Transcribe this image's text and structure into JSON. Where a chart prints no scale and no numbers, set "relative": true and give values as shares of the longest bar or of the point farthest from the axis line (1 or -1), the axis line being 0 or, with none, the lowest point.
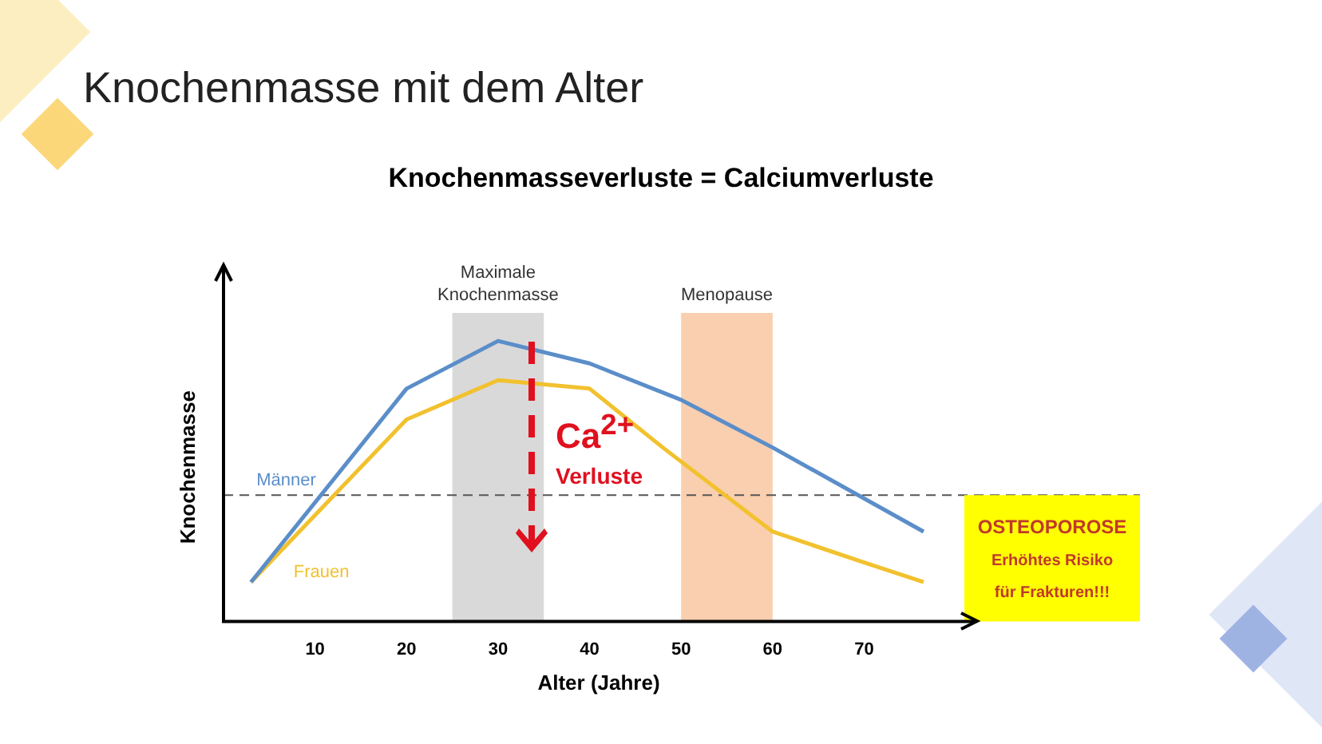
{
  "chart_data": {
    "type": "line",
    "title": "Knochenmasse mit dem Alter",
    "subtitle": "Knochenmasseverluste = Calciumverluste",
    "xlabel": "Alter (Jahre)",
    "ylabel": "Knochenmasse",
    "relative": true,
    "xlim": [
      0,
      82
    ],
    "xticks": [
      10,
      20,
      30,
      40,
      50,
      60,
      70
    ],
    "legend": false,
    "grid": false,
    "marker": "none",
    "line_style": "solid",
    "series": [
      {
        "name": "Männer",
        "color": "#5b8ec9",
        "x": [
          3,
          20,
          30,
          40,
          50,
          60,
          76.5
        ],
        "values": [
          0.14,
          0.83,
          1,
          0.92,
          0.79,
          0.62,
          0.32
        ]
      },
      {
        "name": "Frauen",
        "color": "#f2c12e",
        "x": [
          3,
          20,
          30,
          40,
          48,
          60,
          70,
          76.5
        ],
        "values": [
          0.14,
          0.72,
          0.86,
          0.83,
          0.62,
          0.32,
          0.21,
          0.14
        ]
      }
    ],
    "bands": [
      {
        "axis": "x",
        "from": 25,
        "to": 35,
        "label": "Maximale Knochenmasse",
        "color": "#d9d9d9"
      },
      {
        "axis": "x",
        "from": 50,
        "to": 60,
        "label": "Menopause",
        "color": "#f9cfb0"
      }
    ],
    "ref_lines": [
      {
        "axis": "y",
        "value": 0.45,
        "label": "OSTEOPOROSE\nErhöhtes Risiko\nfür Frakturen!!!",
        "line_style": "dashed",
        "color": "#555555"
      }
    ],
    "annotations": [
      "Ca$^{2+}$",
      "Verluste"
    ]
  }
}
